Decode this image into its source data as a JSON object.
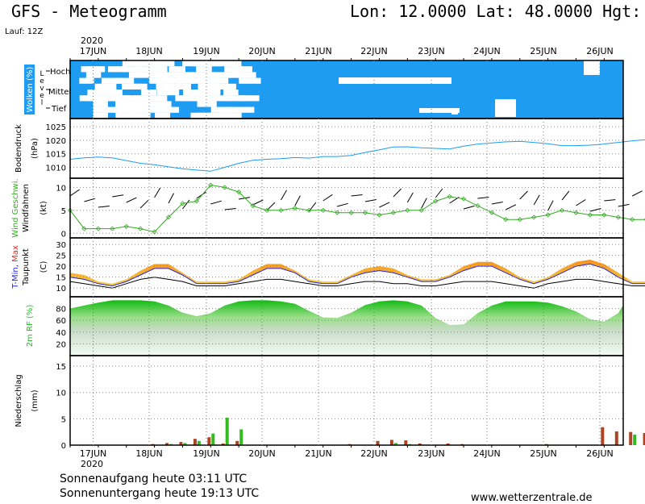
{
  "header": {
    "title": "GFS - Meteogramm",
    "coords": "Lon: 12.0000 Lat: 48.0000 Hgt: 5",
    "run": "Lauf: 12Z"
  },
  "footer": {
    "sunrise": "Sonnenaufgang heute 03:11 UTC",
    "sunset": "Sonnenuntergang heute 19:13 UTC",
    "site": "www.wetterzentrale.de"
  },
  "colors": {
    "cloud": "#1e9cf2",
    "pressure": "#1e9cf2",
    "wind": "#33aa22",
    "tmin": "#2222ee",
    "tmax": "#ee2222",
    "dew": "#000000",
    "rh": "#22bb22",
    "rain_bar": "#aa4422",
    "rain_bar2": "#33bb22"
  },
  "chart_data": [
    {
      "type": "heatmap",
      "id": "clouds",
      "ylabel": "Wolken (%)",
      "ylabel2": "Level",
      "levels": [
        "Hoch",
        "Mittel",
        "Tief"
      ],
      "x_start": "2020-06-16 15:00",
      "x_end": "2020-06-26 12:00",
      "x_axis_top": [
        "17JUN",
        "18JUN",
        "19JUN",
        "20JUN",
        "21JUN",
        "22JUN",
        "23JUN",
        "24JUN",
        "25JUN",
        "26JUN"
      ],
      "year": "2020",
      "ylim": [
        0,
        100
      ]
    },
    {
      "type": "line",
      "id": "pressure",
      "ylabel": "Bodendruck",
      "ylabel2": "(hPa)",
      "yticks": [
        1010,
        1015,
        1020,
        1025
      ],
      "ylim": [
        1006,
        1028
      ],
      "step_hours": 3,
      "values": [
        1013,
        1013.5,
        1013.8,
        1013.5,
        1012.5,
        1011.5,
        1011,
        1010.2,
        1009.5,
        1009,
        1008.6,
        1010,
        1011.5,
        1012.6,
        1013,
        1013.2,
        1013.6,
        1013.4,
        1014,
        1014,
        1014.4,
        1015.5,
        1016.5,
        1017.5,
        1017.6,
        1017.2,
        1017,
        1016.8,
        1017.8,
        1018.6,
        1019,
        1019.4,
        1019.6,
        1019.2,
        1018.7,
        1018,
        1018,
        1018.2,
        1018.6,
        1019.2,
        1019.8,
        1020.2,
        1020.4,
        1020.6,
        1020.8,
        1021.2,
        1021.4,
        1021.2,
        1020.9,
        1020.6,
        1020.3,
        1020,
        1019.6,
        1019.5,
        1019.5,
        1019.5,
        1019.8,
        1020.5,
        1020.9,
        1021.3,
        1021.5,
        1021.3,
        1021.6,
        1022.2,
        1022.8,
        1023,
        1022.7,
        1022.2,
        1022.3,
        1022.6,
        1022.5,
        1021.7,
        1021.3,
        1020.7,
        1020.6,
        1020.4,
        1019.8,
        1019.6,
        1019.4,
        1018.1,
        1017.4,
        1017.4,
        1017.3,
        1017.1,
        1018.2,
        1018.9,
        1019.2,
        1019,
        1018.6,
        1018.1,
        1016.6
      ]
    },
    {
      "type": "line",
      "id": "wind",
      "ylabel": "Wind Geschwi.",
      "ylabel2": "Windfahnen",
      "ylabel3": "(kt)",
      "yticks": [
        0,
        5,
        10
      ],
      "ylim": [
        -1,
        12
      ],
      "step_hours": 3,
      "values": [
        5,
        1,
        1,
        1,
        1.5,
        1,
        0.3,
        3.5,
        6.5,
        7,
        10.5,
        10,
        9,
        6,
        5,
        5,
        5.5,
        5,
        5,
        4.5,
        4.5,
        4.5,
        4,
        4.5,
        5,
        5,
        7,
        8,
        7.5,
        6,
        4.5,
        3,
        3,
        3.5,
        4,
        5,
        4.5,
        4,
        4,
        3.5,
        3,
        3,
        3,
        3,
        3.5,
        4,
        4,
        4,
        5.5,
        6,
        1.5,
        1,
        1,
        1.5,
        1.5,
        2,
        2,
        2.5,
        4,
        3,
        6.5,
        7.5,
        6.5,
        4.5,
        2.5,
        0.5,
        1,
        1,
        1.5,
        1.5,
        3,
        4,
        6,
        8,
        8,
        8,
        5,
        2.5,
        2.5,
        2,
        2,
        2,
        1.5,
        1.5,
        2.5,
        4,
        8,
        10,
        7.5,
        5,
        5,
        2.5,
        2,
        1.5,
        3
      ]
    },
    {
      "type": "area",
      "id": "temp",
      "ylabel": "T-Min, Max",
      "ylabel2": "Taupunkt",
      "ylabel3": "(C)",
      "yticks": [
        10,
        15,
        20,
        25,
        30
      ],
      "ylim": [
        6,
        33
      ],
      "step_hours": 3,
      "series": [
        {
          "name": "T-Max",
          "values": [
            17,
            16,
            13,
            12,
            14,
            18,
            21,
            21,
            17,
            13,
            13,
            13,
            14,
            18,
            21,
            21,
            18,
            14,
            13,
            13,
            16,
            19,
            20,
            19,
            16,
            14,
            14,
            16,
            20,
            22,
            22,
            19,
            15,
            13,
            15,
            19,
            22,
            23,
            21,
            17,
            13,
            13,
            16,
            21,
            24,
            24,
            22,
            17,
            15,
            15,
            17,
            22,
            23,
            23,
            20,
            17,
            15,
            15,
            18,
            21,
            24,
            25,
            22,
            18,
            16,
            16,
            19,
            22,
            26,
            26,
            22,
            18,
            16,
            16,
            18,
            24,
            28,
            29,
            27,
            20,
            17,
            16,
            19,
            27,
            30,
            30,
            28,
            20,
            18,
            20,
            27,
            28
          ]
        },
        {
          "name": "T-Min",
          "values": [
            15,
            14,
            12,
            11,
            13,
            16,
            19,
            19,
            16,
            12,
            12,
            12,
            13,
            16,
            19,
            19,
            17,
            13,
            12,
            12,
            15,
            17,
            18,
            17,
            15,
            13,
            13,
            15,
            18,
            20,
            20,
            17,
            14,
            12,
            14,
            17,
            20,
            21,
            19,
            15,
            12,
            12,
            15,
            19,
            22,
            22,
            20,
            16,
            14,
            14,
            16,
            20,
            21,
            21,
            18,
            16,
            14,
            14,
            17,
            20,
            22,
            23,
            20,
            17,
            15,
            15,
            18,
            20,
            23,
            23,
            20,
            17,
            15,
            15,
            17,
            22,
            25,
            25,
            23,
            19,
            16,
            15,
            18,
            23,
            25,
            25,
            24,
            19,
            17,
            19,
            23,
            24
          ]
        },
        {
          "name": "Taupunkt",
          "values": [
            13,
            12,
            11,
            10,
            12,
            14,
            15,
            14,
            13,
            11,
            11,
            11,
            12,
            13,
            14,
            14,
            13,
            12,
            11,
            11,
            12,
            13,
            13,
            12,
            12,
            11,
            11,
            12,
            13,
            13,
            13,
            12,
            11,
            10,
            12,
            13,
            14,
            14,
            13,
            12,
            11,
            11,
            12,
            14,
            15,
            15,
            14,
            13,
            12,
            12,
            13,
            14,
            15,
            15,
            14,
            13,
            13,
            13,
            14,
            15,
            16,
            16,
            15,
            14,
            14,
            14,
            15,
            16,
            17,
            17,
            16,
            15,
            14,
            14,
            15,
            17,
            18,
            18,
            17,
            16,
            15,
            15,
            16,
            18,
            19,
            19,
            18,
            16,
            16,
            17,
            19,
            19
          ]
        }
      ]
    },
    {
      "type": "area",
      "id": "rh",
      "ylabel": "2m RF (%)",
      "yticks": [
        20,
        40,
        60,
        80
      ],
      "ylim": [
        0,
        100
      ],
      "step_hours": 3,
      "values": [
        80,
        85,
        90,
        94,
        94,
        94,
        92,
        85,
        73,
        67,
        72,
        85,
        92,
        94,
        94,
        92,
        88,
        76,
        65,
        64,
        73,
        86,
        92,
        94,
        92,
        85,
        64,
        52,
        53,
        72,
        85,
        92,
        92,
        92,
        90,
        84,
        75,
        62,
        58,
        72,
        86,
        92,
        92,
        92,
        88,
        80,
        68,
        58,
        58,
        64,
        78,
        88,
        93,
        93,
        90,
        78,
        64,
        62,
        63,
        82,
        85,
        85,
        84,
        85,
        86,
        80,
        68,
        60,
        60,
        68,
        82,
        92,
        94,
        94,
        92,
        84,
        70,
        58,
        55,
        68,
        84,
        92,
        94,
        92,
        88,
        78,
        65,
        55,
        60,
        80,
        90,
        92,
        92,
        90,
        85,
        72,
        60,
        54
      ]
    },
    {
      "type": "bar",
      "id": "precip",
      "ylabel": "Niederschlag",
      "ylabel2": "(mm)",
      "yticks": [
        0,
        5,
        10,
        15
      ],
      "ylim": [
        0,
        17
      ],
      "x_axis_bottom": [
        "17JUN",
        "18JUN",
        "19JUN",
        "20JUN",
        "21JUN",
        "22JUN",
        "23JUN",
        "24JUN",
        "25JUN",
        "26JUN"
      ],
      "year": "2020",
      "step_hours": 3,
      "series": [
        {
          "name": "Gesamt",
          "values": [
            0,
            0,
            0,
            0,
            0,
            0,
            0.2,
            0.4,
            0.6,
            1.2,
            1.5,
            0.3,
            0.8,
            0,
            0,
            0,
            0,
            0,
            0,
            0,
            0.2,
            0,
            0.8,
            1.0,
            0.9,
            0.3,
            0,
            0.3,
            0.2,
            0,
            0,
            0,
            0,
            0,
            0.2,
            0,
            0,
            0,
            3.4,
            2.6,
            2.5,
            2.3,
            0.4,
            0,
            0,
            0,
            0.3,
            0.3,
            0,
            0,
            0,
            0,
            0,
            0,
            0,
            0,
            0,
            0,
            0,
            0,
            0,
            0,
            0.2,
            0,
            0,
            0,
            0,
            0,
            0,
            0,
            0,
            0,
            0,
            0,
            0.2,
            0.3,
            0.2,
            0,
            0,
            0,
            0,
            0,
            0,
            0,
            0,
            0,
            0,
            0,
            0,
            2.8,
            0,
            0
          ]
        },
        {
          "name": "Konvektiv",
          "values": [
            0,
            0,
            0,
            0,
            0,
            0,
            0,
            0.2,
            0.4,
            0.8,
            2.2,
            5.2,
            3.0,
            0,
            0,
            0,
            0,
            0,
            0,
            0,
            0,
            0,
            0,
            0.4,
            0.2,
            0,
            0,
            0,
            0,
            0,
            0,
            0,
            0,
            0,
            0,
            0,
            0,
            0,
            0,
            0,
            2.0,
            0,
            0,
            0,
            0,
            0,
            0,
            0.2,
            0,
            0,
            0,
            0,
            0,
            0,
            0,
            0,
            0,
            0,
            0,
            0,
            0,
            0,
            0,
            0,
            0,
            0,
            0,
            0,
            0,
            0,
            0,
            0,
            0,
            0,
            0,
            0,
            0,
            0,
            0,
            0,
            0,
            0,
            0,
            0,
            0,
            0,
            0,
            0,
            0,
            0,
            1.2,
            0
          ]
        }
      ]
    }
  ]
}
